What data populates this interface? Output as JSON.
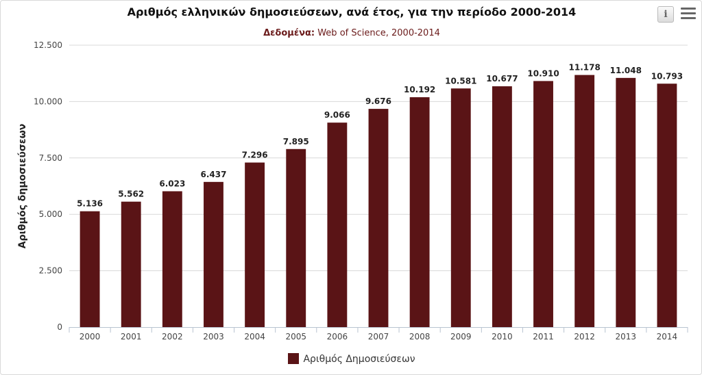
{
  "toolbar": {
    "info_icon": "info-icon",
    "menu_icon": "hamburger-menu-icon",
    "info_glyph": "i"
  },
  "chart_data": {
    "type": "bar",
    "title": "Αριθμός ελληνικών δημοσιεύσεων, ανά έτος, για την περίοδο 2000-2014",
    "subtitle_label": "Δεδομένα:",
    "subtitle_value": "Web of Science, 2000-2014",
    "ylabel": "Αριθμός δημοσιεύσεων",
    "xlabel": "",
    "ylim": [
      0,
      12500
    ],
    "yticks": [
      0,
      2500,
      5000,
      7500,
      10000,
      12500
    ],
    "ytick_labels": [
      "0",
      "2.500",
      "5.000",
      "7.500",
      "10.000",
      "12.500"
    ],
    "categories": [
      "2000",
      "2001",
      "2002",
      "2003",
      "2004",
      "2005",
      "2006",
      "2007",
      "2008",
      "2009",
      "2010",
      "2011",
      "2012",
      "2013",
      "2014"
    ],
    "series": [
      {
        "name": "Αριθμός Δημοσιεύσεων",
        "color": "#5a1416",
        "values": [
          5136,
          5562,
          6023,
          6437,
          7296,
          7895,
          9066,
          9676,
          10192,
          10581,
          10677,
          10910,
          11178,
          11048,
          10793
        ],
        "labels": [
          "5.136",
          "5.562",
          "6.023",
          "6.437",
          "7.296",
          "7.895",
          "9.066",
          "9.676",
          "10.192",
          "10.581",
          "10.677",
          "10.910",
          "11.178",
          "11.048",
          "10.793"
        ]
      }
    ],
    "grid": true,
    "legend_position": "bottom-center"
  }
}
